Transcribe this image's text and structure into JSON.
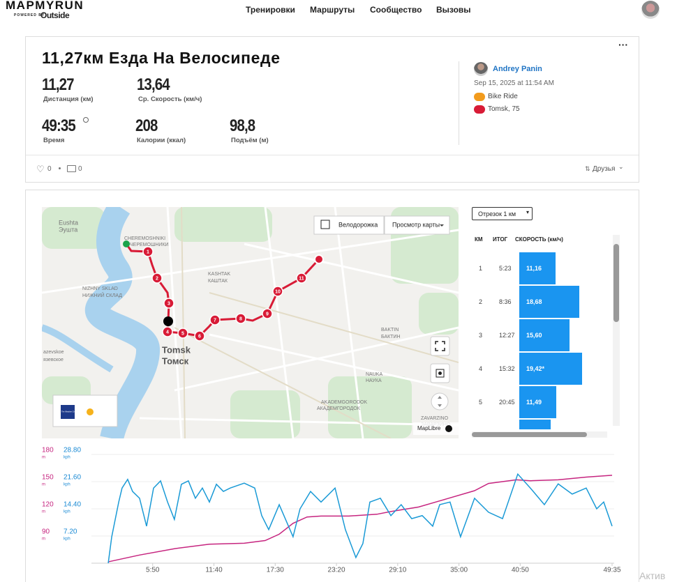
{
  "header": {
    "logo": "MAPMYRUN",
    "powered_by": "POWERED BY",
    "brand": "Outside",
    "nav": [
      "Тренировки",
      "Маршруты",
      "Сообщество",
      "Вызовы"
    ]
  },
  "activity": {
    "title": "11,27км Езда На Велосипеде",
    "stats": [
      {
        "value": "11,27",
        "label": "Дистанция (км)"
      },
      {
        "value": "13,64",
        "label": "Ср. Скорость (км/ч)"
      },
      {
        "value": "49:35",
        "label": "Время"
      },
      {
        "value": "208",
        "label": "Калории (ккал)"
      },
      {
        "value": "98,8",
        "label": "Подъём (м)"
      }
    ],
    "user": "Andrey Panin",
    "date": "Sep 15, 2025 at 11:54 AM",
    "activity_type": "Bike Ride",
    "location": "Tomsk, 75",
    "likes": "0",
    "comments": "0",
    "privacy": "Друзья"
  },
  "map": {
    "layer_toggle": "Велодорожка",
    "view_button": "Просмотр карты",
    "labels": [
      "Eushta",
      "Эушта",
      "CHEREMOSHNIKI",
      "ЧЕРЕМОШНИКИ",
      "NIZHNY SKLAD",
      "НИЖНИЙ СКЛАД",
      "KASHTAK",
      "КАШТАК",
      "Tomsk",
      "Томск",
      "BAKTIN",
      "БАКТИН",
      "NAUKA",
      "НАУКА",
      "AKADEMGORODOK",
      "АКАДЕМГОРОДОК",
      "ZAVARZINO",
      "ЗАВАРЗИНО",
      "azevskoe",
      "язевское"
    ],
    "markers": [
      "1",
      "2",
      "3",
      "4",
      "5",
      "6",
      "7",
      "8",
      "9",
      "10",
      "11"
    ],
    "attribution": "MapLibre",
    "weather": "The Weather Channel"
  },
  "splits": {
    "selector": "Отрезок 1 км",
    "headers": [
      "КМ",
      "ИТОГ",
      "СКОРОСТЬ (км/ч)"
    ],
    "km": [
      "1",
      "2",
      "3",
      "4",
      "5"
    ],
    "totals": [
      "5:23",
      "8:36",
      "12:27",
      "15:32",
      "20:45"
    ],
    "speeds": [
      11.16,
      18.68,
      15.6,
      19.42,
      11.49
    ],
    "speed_labels": [
      "11,16",
      "18,68",
      "15,60",
      "19,42*",
      "11,49"
    ]
  },
  "chart_data": {
    "type": "line",
    "xlim": [
      0,
      2975
    ],
    "xticks": [
      {
        "value": 350,
        "label": "5:50"
      },
      {
        "value": 700,
        "label": "11:40"
      },
      {
        "value": 1050,
        "label": "17:30"
      },
      {
        "value": 1400,
        "label": "23:20"
      },
      {
        "value": 1750,
        "label": "29:10"
      },
      {
        "value": 2100,
        "label": "35:00"
      },
      {
        "value": 2450,
        "label": "40:50"
      },
      {
        "value": 2975,
        "label": "49:35"
      }
    ],
    "ylim": [
      60,
      180
    ],
    "yticks": [
      90,
      120,
      150,
      180
    ],
    "y_unit": "m",
    "y2lim": [
      0,
      28.8
    ],
    "y2ticks": [
      {
        "value": 7.2,
        "label": "7.20"
      },
      {
        "value": 14.4,
        "label": "14.40"
      },
      {
        "value": 21.6,
        "label": "21.60"
      },
      {
        "value": 28.8,
        "label": "28.80"
      }
    ],
    "y2_unit": "kph",
    "grid": true,
    "series": [
      {
        "color": "#c6247f",
        "x": [
          96,
          275,
          474,
          674,
          873,
          993,
          1073,
          1152,
          1232,
          1312,
          1471,
          1631,
          1711,
          1870,
          2030,
          2189,
          2269,
          2428,
          2508,
          2667,
          2827,
          2975
        ],
        "values": [
          61.5,
          69,
          76,
          81,
          82,
          85,
          92,
          104,
          111,
          112,
          112,
          114,
          117,
          122,
          131,
          140,
          148,
          152,
          151,
          152,
          155,
          157
        ]
      },
      {
        "color": "#1a9ad6",
        "axis": "y2",
        "x": [
          96,
          116,
          156,
          175,
          207,
          235,
          275,
          315,
          355,
          395,
          435,
          474,
          514,
          554,
          594,
          634,
          674,
          714,
          754,
          793,
          873,
          933,
          973,
          1013,
          1073,
          1152,
          1192,
          1252,
          1312,
          1392,
          1451,
          1511,
          1551,
          1591,
          1651,
          1711,
          1770,
          1830,
          1890,
          1950,
          1990,
          2049,
          2109,
          2189,
          2269,
          2349,
          2436,
          2508,
          2588,
          2667,
          2747,
          2827,
          2887,
          2927,
          2975
        ],
        "values": [
          0,
          7,
          16.2,
          19.9,
          22.2,
          19,
          17.2,
          9.8,
          19.9,
          21.8,
          16.2,
          11.6,
          20.9,
          21.8,
          17.2,
          19.9,
          16.2,
          20.9,
          19,
          19.9,
          21.2,
          19.9,
          12.6,
          8.9,
          15.5,
          7,
          14.4,
          19,
          16.2,
          19.9,
          8.9,
          1.5,
          5.2,
          16.2,
          17.2,
          12.6,
          15.5,
          11.8,
          12.6,
          9.8,
          15.5,
          16.2,
          7,
          17.2,
          13.5,
          11.8,
          23.6,
          19.9,
          15.5,
          21,
          18.3,
          19.9,
          14.4,
          16.2,
          9.8
        ]
      }
    ]
  },
  "watermark": "Актив"
}
